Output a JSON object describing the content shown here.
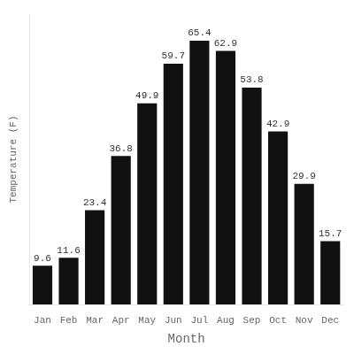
{
  "chart_data": {
    "type": "bar",
    "categories": [
      "Jan",
      "Feb",
      "Mar",
      "Apr",
      "May",
      "Jun",
      "Jul",
      "Aug",
      "Sep",
      "Oct",
      "Nov",
      "Dec"
    ],
    "values": [
      9.6,
      11.6,
      23.4,
      36.8,
      49.9,
      59.7,
      65.4,
      62.9,
      53.8,
      42.9,
      29.9,
      15.7
    ],
    "color": "#111111",
    "x_label": "Month",
    "y_label": "Temperature (F)",
    "ylim": [
      0,
      72
    ],
    "grid": false,
    "data_labels": true,
    "tick_labels": "x"
  }
}
